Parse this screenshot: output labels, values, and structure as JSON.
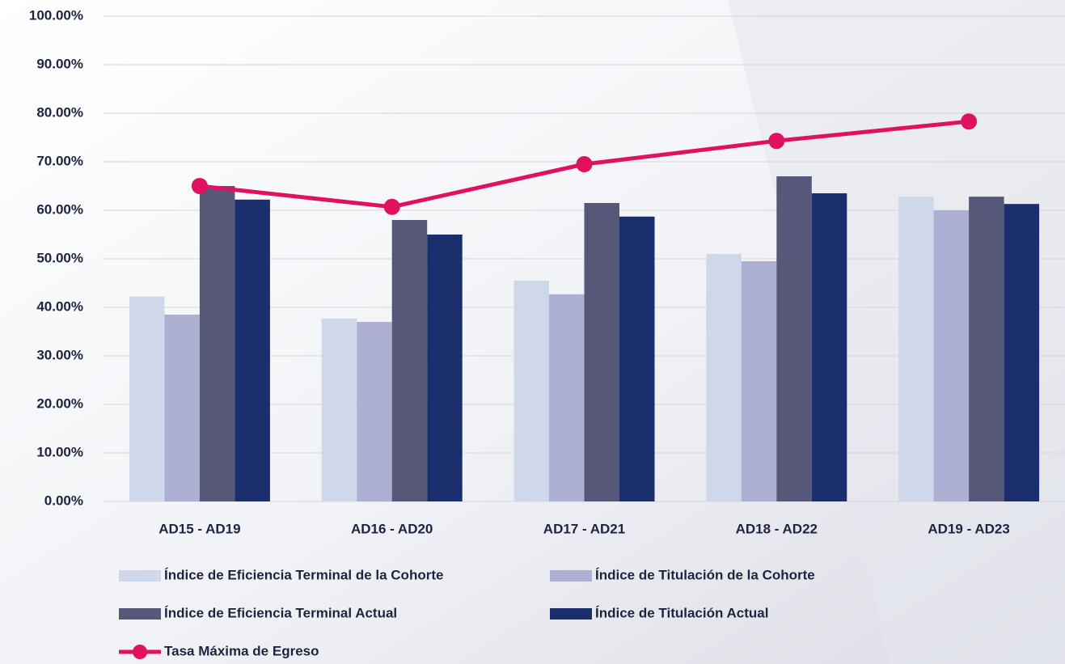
{
  "chart_data": {
    "type": "bar",
    "categories": [
      "AD15 - AD19",
      "AD16 - AD20",
      "AD17 - AD21",
      "AD18 - AD22",
      "AD19 - AD23"
    ],
    "series": [
      {
        "name": "Índice de Eficiencia Terminal de la Cohorte",
        "color": "#cfd8ea",
        "values": [
          42.2,
          37.7,
          45.5,
          51.0,
          62.8
        ]
      },
      {
        "name": "Índice de Titulación de la Cohorte",
        "color": "#adb0d3",
        "values": [
          38.5,
          37.0,
          42.7,
          49.5,
          60.0
        ]
      },
      {
        "name": "Índice de Eficiencia Terminal Actual",
        "color": "#57577a",
        "values": [
          65.0,
          58.0,
          61.5,
          67.0,
          62.8
        ]
      },
      {
        "name": "Índice de Titulación Actual",
        "color": "#1b2f6e",
        "values": [
          62.2,
          55.0,
          58.7,
          63.5,
          61.3
        ]
      },
      {
        "name": "Tasa Máxima de Egreso",
        "color": "#e0115f",
        "type": "line",
        "values": [
          65.0,
          60.7,
          69.5,
          74.3,
          78.3
        ]
      }
    ],
    "ylim": [
      0,
      100
    ],
    "yticks": [
      {
        "value": 0,
        "label": "0.00%"
      },
      {
        "value": 10,
        "label": "10.00%"
      },
      {
        "value": 20,
        "label": "20.00%"
      },
      {
        "value": 30,
        "label": "30.00%"
      },
      {
        "value": 40,
        "label": "40.00%"
      },
      {
        "value": 50,
        "label": "50.00%"
      },
      {
        "value": 60,
        "label": "60.00%"
      },
      {
        "value": 70,
        "label": "70.00%"
      },
      {
        "value": 80,
        "label": "80.00%"
      },
      {
        "value": 90,
        "label": "90.00%"
      },
      {
        "value": 100,
        "label": "100.00%"
      }
    ],
    "grid": true,
    "legend": "bottom"
  }
}
